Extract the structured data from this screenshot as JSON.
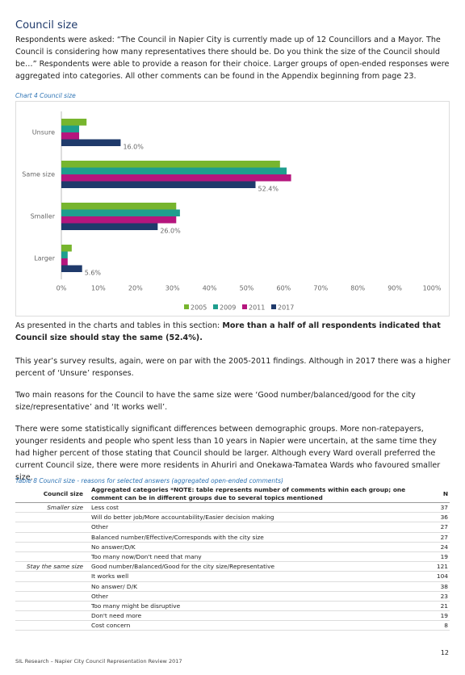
{
  "heading": "Council size",
  "intro": "Respondents were asked: “The Council in Napier City is currently made up of 12 Councillors and a Mayor. The Council is considering how many representatives there should be. Do you think the size of the Council should be…” Respondents were able to provide a reason for their choice. Larger groups of open-ended responses were aggregated into categories. All other comments can be found in the Appendix beginning from page 23.",
  "chart_caption": "Chart 4 Council size",
  "chart_data": {
    "type": "hbar",
    "categories": [
      "Unsure",
      "Same size",
      "Smaller",
      "Larger"
    ],
    "series": [
      {
        "name": "2005",
        "color": "#77b52e",
        "values": [
          6.8,
          59,
          31,
          2.8
        ]
      },
      {
        "name": "2009",
        "color": "#1e9e8e",
        "values": [
          4.8,
          60.8,
          32,
          1.7
        ]
      },
      {
        "name": "2011",
        "color": "#b5157d",
        "values": [
          4.8,
          62,
          31,
          1.7
        ]
      },
      {
        "name": "2017",
        "color": "#1f3a6b",
        "values": [
          16.0,
          52.4,
          26.0,
          5.6
        ],
        "value_labels": [
          "16.0%",
          "52.4%",
          "26.0%",
          "5.6%"
        ]
      }
    ],
    "xlim": [
      0,
      100
    ],
    "xticks": [
      {
        "value": 0,
        "label": "0%"
      },
      {
        "value": 10,
        "label": "10%"
      },
      {
        "value": 20,
        "label": "20%"
      },
      {
        "value": 30,
        "label": "30%"
      },
      {
        "value": 40,
        "label": "40%"
      },
      {
        "value": 50,
        "label": "50%"
      },
      {
        "value": 60,
        "label": "60%"
      },
      {
        "value": 70,
        "label": "70%"
      },
      {
        "value": 80,
        "label": "80%"
      },
      {
        "value": 90,
        "label": "90%"
      },
      {
        "value": 100,
        "label": "100%"
      }
    ],
    "legend": "bottom"
  },
  "summary": {
    "text": "As presented in the charts and tables in this section: ",
    "bold": "More than a half of all respondents indicated that Council size should stay the same (52.4%)."
  },
  "paragraphs": [
    "This year’s survey results, again, were on par with the 2005-2011 findings. Although in 2017 there was a higher percent of ‘Unsure’ responses.",
    "Two main reasons for the Council to have the same size were ‘Good number/balanced/good for the city size/representative’ and ‘It works well’.",
    "There were some statistically significant differences between demographic groups. More non-ratepayers, younger residents and people who spent less than 10 years in Napier were uncertain, at the same time they had higher percent of those stating that Council should be larger. Although every Ward overall preferred the current Council size, there were more residents in Ahuriri and Onekawa-Tamatea Wards who favoured smaller size."
  ],
  "table": {
    "caption": "Table 8 Council size - reasons for selected answers (aggregated open-ended comments)",
    "headers": [
      "Council size",
      "Aggregated categories *NOTE: table represents number of comments within each group; one comment can be in different groups due to several topics mentioned",
      "N"
    ],
    "rows": [
      [
        "Smaller size",
        "Less cost",
        "37"
      ],
      [
        null,
        "Will do better job/More accountability/Easier decision making",
        "36"
      ],
      [
        null,
        "Other",
        "27"
      ],
      [
        null,
        "Balanced number/Effective/Corresponds with the city size",
        "27"
      ],
      [
        null,
        "No answer/D/K",
        "24"
      ],
      [
        null,
        "Too many now/Don't need that many",
        "19"
      ],
      [
        "Stay the same size",
        "Good number/Balanced/Good for the city size/Representative",
        "121"
      ],
      [
        null,
        "It works well",
        "104"
      ],
      [
        null,
        "No answer/ D/K",
        "38"
      ],
      [
        null,
        "Other",
        "23"
      ],
      [
        null,
        "Too many might be disruptive",
        "21"
      ],
      [
        null,
        "Don't need more",
        "19"
      ],
      [
        null,
        "Cost concern",
        "8"
      ]
    ]
  },
  "page_number": "12",
  "footer": "SIL Research – Napier City Council Representation Review 2017"
}
